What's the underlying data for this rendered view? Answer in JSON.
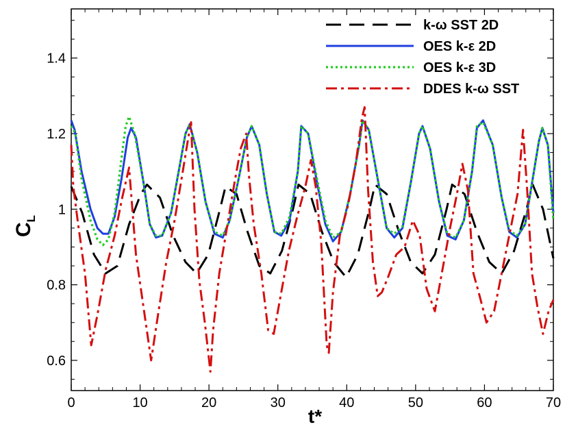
{
  "chart_data": {
    "type": "line",
    "xlabel": "t*",
    "ylabel": "C",
    "ylabel_sub": "L",
    "xlim": [
      0,
      70
    ],
    "ylim": [
      0.52,
      1.53
    ],
    "xticks": [
      0,
      10,
      20,
      30,
      40,
      50,
      60,
      70
    ],
    "xtick_labels": [
      "0",
      "10",
      "20",
      "30",
      "40",
      "50",
      "60",
      "70"
    ],
    "yticks": [
      0.6,
      0.8,
      1.0,
      1.2,
      1.4
    ],
    "ytick_labels": [
      "0.6",
      "0.8",
      "1",
      "1.2",
      "1.4"
    ],
    "grid": false,
    "legend_position": "top-right",
    "series": [
      {
        "name": "k-ω SST 2D",
        "color": "#000000",
        "style": "dashed",
        "x": [
          0,
          1.6,
          3.3,
          5.0,
          6.7,
          8.4,
          10.1,
          11.0,
          12.9,
          14.8,
          16.6,
          18.2,
          19.9,
          21.6,
          22.4,
          24.0,
          25.6,
          27.3,
          28.9,
          30.6,
          32.2,
          33.0,
          34.7,
          36.4,
          38.1,
          39.9,
          41.6,
          43.3,
          44.1,
          45.8,
          47.6,
          49.3,
          51.0,
          52.8,
          54.5,
          55.3,
          57.1,
          58.9,
          60.7,
          62.5,
          64.3,
          66.1,
          67.0,
          68.5,
          70.0
        ],
        "y": [
          1.06,
          0.99,
          0.88,
          0.83,
          0.85,
          0.96,
          1.04,
          1.065,
          1.03,
          0.93,
          0.86,
          0.83,
          0.88,
          1.0,
          1.06,
          1.04,
          0.94,
          0.85,
          0.83,
          0.89,
          1.0,
          1.065,
          1.04,
          0.94,
          0.86,
          0.82,
          0.88,
          1.0,
          1.065,
          1.04,
          0.94,
          0.86,
          0.83,
          0.88,
          1.0,
          1.065,
          1.04,
          0.94,
          0.86,
          0.83,
          0.89,
          1.0,
          1.065,
          1.0,
          0.87
        ]
      },
      {
        "name": "OES k-ε 2D",
        "color": "#1f3fe0",
        "style": "solid",
        "x": [
          0,
          0.5,
          1.5,
          2.8,
          3.8,
          4.6,
          5.4,
          6.3,
          7.3,
          8.2,
          8.7,
          9.4,
          10.5,
          11.4,
          12.3,
          13.2,
          14.5,
          15.7,
          16.6,
          17.2,
          18.3,
          19.5,
          20.8,
          22.0,
          23.0,
          24.3,
          25.5,
          26.2,
          27.3,
          28.4,
          29.5,
          30.5,
          31.7,
          32.9,
          33.4,
          34.4,
          35.8,
          36.9,
          38.0,
          39.2,
          40.5,
          41.8,
          42.3,
          43.2,
          44.6,
          45.8,
          46.9,
          48.1,
          49.3,
          50.5,
          51.0,
          52.1,
          53.4,
          54.6,
          55.8,
          57.0,
          58.2,
          58.9,
          59.8,
          61.2,
          62.5,
          63.6,
          64.7,
          65.9,
          67.0,
          67.9,
          68.4,
          69.2,
          70.0
        ],
        "y": [
          1.235,
          1.21,
          1.1,
          1.0,
          0.95,
          0.935,
          0.935,
          0.98,
          1.08,
          1.19,
          1.215,
          1.19,
          1.07,
          0.96,
          0.925,
          0.93,
          0.99,
          1.11,
          1.2,
          1.225,
          1.15,
          1.02,
          0.935,
          0.925,
          0.97,
          1.08,
          1.19,
          1.22,
          1.17,
          1.04,
          0.94,
          0.93,
          0.97,
          1.1,
          1.22,
          1.2,
          1.06,
          0.96,
          0.915,
          0.94,
          1.04,
          1.17,
          1.235,
          1.21,
          1.07,
          0.95,
          0.925,
          0.95,
          1.07,
          1.2,
          1.22,
          1.16,
          1.02,
          0.93,
          0.92,
          0.97,
          1.1,
          1.215,
          1.235,
          1.17,
          1.03,
          0.94,
          0.925,
          0.96,
          1.08,
          1.18,
          1.215,
          1.17,
          0.99
        ]
      },
      {
        "name": "OES k-ε 3D",
        "color": "#22cc22",
        "style": "dotted",
        "x": [
          0,
          0.6,
          1.5,
          2.8,
          3.8,
          4.6,
          5.4,
          6.3,
          7.2,
          7.9,
          8.4,
          9.2,
          10.5,
          11.4,
          12.3,
          13.2,
          14.5,
          15.7,
          16.6,
          17.2,
          18.3,
          19.5,
          20.8,
          22.0,
          23.0,
          24.3,
          25.5,
          26.2,
          27.3,
          28.4,
          29.5,
          30.5,
          31.7,
          32.9,
          33.4,
          34.4,
          35.8,
          36.9,
          38.0,
          39.2,
          40.5,
          41.8,
          42.3,
          43.2,
          44.6,
          45.8,
          46.9,
          48.1,
          49.3,
          50.5,
          51.0,
          52.1,
          53.4,
          54.6,
          55.8,
          57.0,
          58.2,
          58.9,
          59.8,
          61.2,
          62.5,
          63.6,
          64.7,
          65.9,
          67.0,
          67.9,
          68.4,
          69.2,
          70.0
        ],
        "y": [
          1.22,
          1.2,
          1.08,
          0.97,
          0.92,
          0.905,
          0.92,
          0.99,
          1.12,
          1.22,
          1.245,
          1.2,
          1.07,
          0.96,
          0.93,
          0.93,
          0.99,
          1.11,
          1.2,
          1.225,
          1.15,
          1.02,
          0.94,
          0.93,
          0.97,
          1.08,
          1.19,
          1.22,
          1.17,
          1.04,
          0.94,
          0.935,
          0.98,
          1.1,
          1.22,
          1.2,
          1.07,
          0.97,
          0.925,
          0.94,
          1.04,
          1.17,
          1.235,
          1.21,
          1.07,
          0.95,
          0.935,
          0.955,
          1.07,
          1.2,
          1.22,
          1.16,
          1.02,
          0.935,
          0.925,
          0.97,
          1.1,
          1.22,
          1.23,
          1.17,
          1.03,
          0.945,
          0.93,
          0.96,
          1.08,
          1.18,
          1.215,
          1.17,
          0.97
        ]
      },
      {
        "name": "DDES k-ω SST",
        "color": "#d40f0f",
        "style": "dashdot",
        "x": [
          0,
          0.3,
          1.0,
          2.0,
          2.9,
          3.8,
          5.0,
          6.3,
          7.4,
          8.4,
          9.4,
          10.5,
          11.6,
          12.6,
          13.8,
          15.0,
          16.2,
          17.0,
          17.4,
          17.9,
          18.6,
          19.4,
          20.2,
          20.6,
          21.5,
          22.6,
          23.7,
          24.6,
          25.4,
          25.8,
          26.5,
          27.6,
          28.6,
          29.4,
          30.4,
          31.6,
          32.8,
          34.0,
          34.8,
          35.5,
          36.3,
          37.1,
          37.4,
          38.0,
          39.0,
          40.2,
          41.3,
          42.2,
          42.6,
          43.1,
          43.8,
          44.5,
          45.1,
          46.0,
          47.2,
          48.4,
          49.6,
          50.6,
          51.6,
          52.8,
          53.9,
          55.0,
          56.0,
          56.8,
          57.6,
          58.4,
          59.3,
          60.3,
          61.4,
          62.6,
          63.7,
          64.8,
          65.6,
          66.2,
          66.9,
          67.7,
          68.5,
          69.3,
          70.0
        ],
        "y": [
          1.17,
          1.06,
          0.96,
          0.83,
          0.64,
          0.72,
          0.84,
          0.93,
          1.03,
          1.11,
          0.88,
          0.74,
          0.6,
          0.72,
          0.86,
          0.97,
          1.1,
          1.19,
          1.23,
          1.0,
          0.81,
          0.7,
          0.57,
          0.68,
          0.83,
          0.95,
          1.07,
          1.16,
          1.2,
          1.09,
          0.96,
          0.83,
          0.68,
          0.67,
          0.77,
          0.89,
          0.98,
          1.06,
          1.13,
          1.06,
          0.91,
          0.64,
          0.62,
          0.78,
          0.93,
          1.01,
          1.12,
          1.24,
          1.27,
          1.05,
          0.86,
          0.77,
          0.78,
          0.82,
          0.88,
          0.9,
          0.97,
          0.93,
          0.79,
          0.73,
          0.84,
          0.95,
          1.04,
          1.12,
          1.05,
          0.83,
          0.77,
          0.7,
          0.73,
          0.84,
          0.94,
          1.04,
          1.21,
          1.05,
          0.83,
          0.74,
          0.67,
          0.73,
          0.76
        ]
      }
    ]
  }
}
